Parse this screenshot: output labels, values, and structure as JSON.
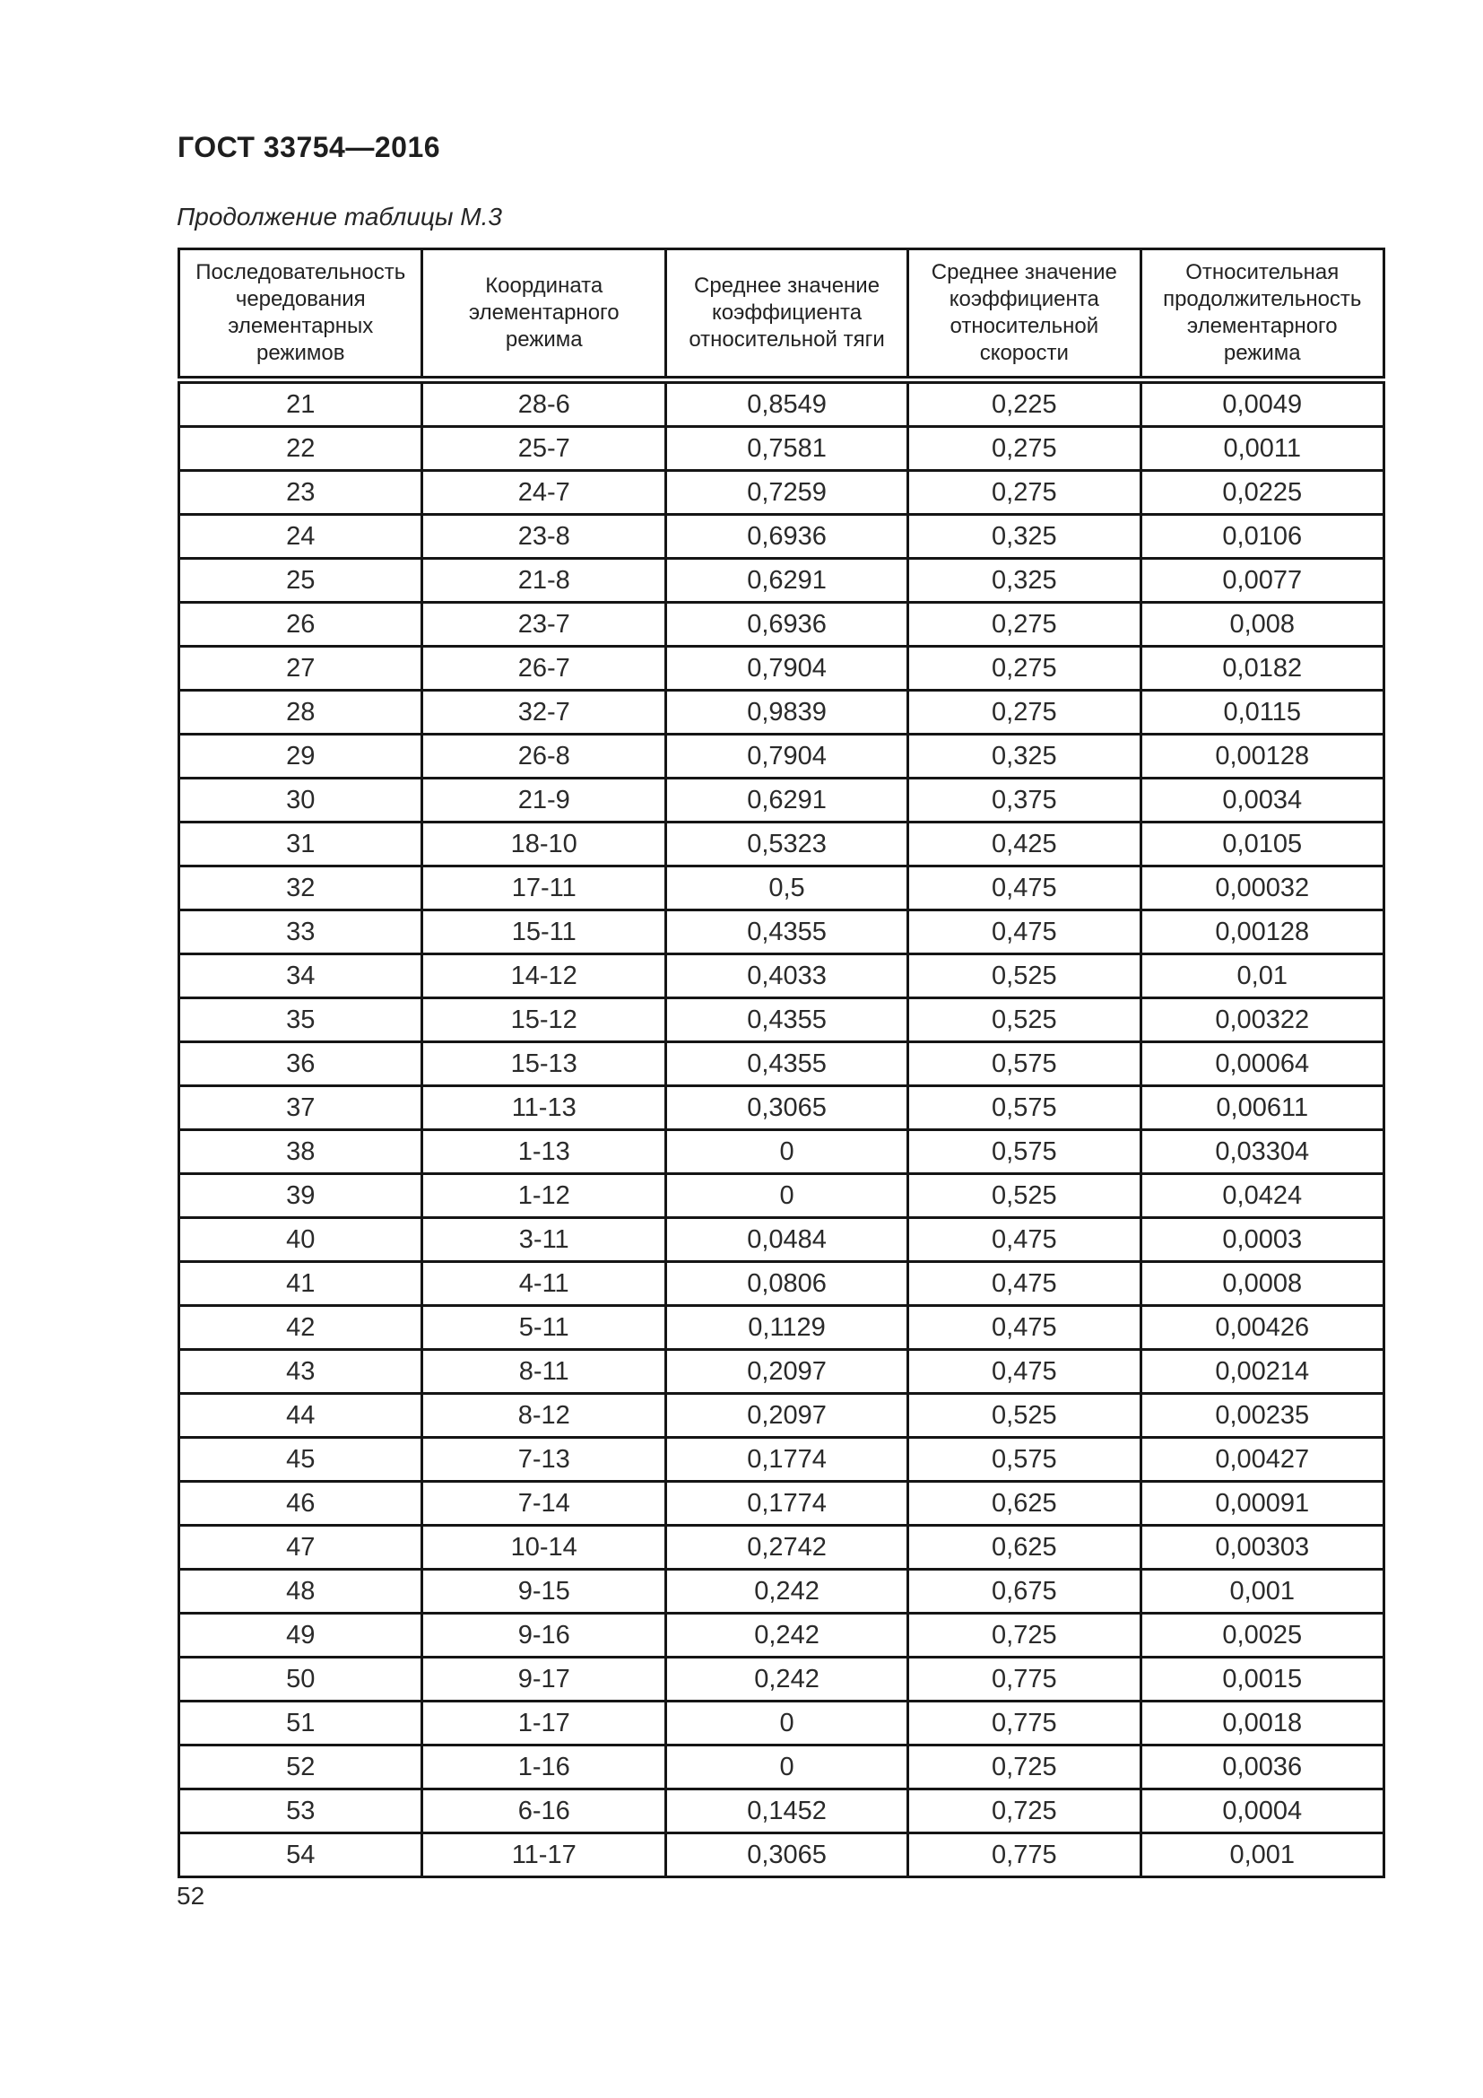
{
  "document": {
    "standard_code": "ГОСТ 33754—2016",
    "table_caption": "Продолжение таблицы М.3",
    "page_number": "52"
  },
  "table": {
    "columns": [
      "Последовательность чередования элементарных режимов",
      "Координата элементарного режима",
      "Среднее значение коэффициента относительной тяги",
      "Среднее значение коэффициента относительной скорости",
      "Относительная продолжительность элементарного режима"
    ],
    "rows": [
      [
        "21",
        "28-6",
        "0,8549",
        "0,225",
        "0,0049"
      ],
      [
        "22",
        "25-7",
        "0,7581",
        "0,275",
        "0,0011"
      ],
      [
        "23",
        "24-7",
        "0,7259",
        "0,275",
        "0,0225"
      ],
      [
        "24",
        "23-8",
        "0,6936",
        "0,325",
        "0,0106"
      ],
      [
        "25",
        "21-8",
        "0,6291",
        "0,325",
        "0,0077"
      ],
      [
        "26",
        "23-7",
        "0,6936",
        "0,275",
        "0,008"
      ],
      [
        "27",
        "26-7",
        "0,7904",
        "0,275",
        "0,0182"
      ],
      [
        "28",
        "32-7",
        "0,9839",
        "0,275",
        "0,0115"
      ],
      [
        "29",
        "26-8",
        "0,7904",
        "0,325",
        "0,00128"
      ],
      [
        "30",
        "21-9",
        "0,6291",
        "0,375",
        "0,0034"
      ],
      [
        "31",
        "18-10",
        "0,5323",
        "0,425",
        "0,0105"
      ],
      [
        "32",
        "17-11",
        "0,5",
        "0,475",
        "0,00032"
      ],
      [
        "33",
        "15-11",
        "0,4355",
        "0,475",
        "0,00128"
      ],
      [
        "34",
        "14-12",
        "0,4033",
        "0,525",
        "0,01"
      ],
      [
        "35",
        "15-12",
        "0,4355",
        "0,525",
        "0,00322"
      ],
      [
        "36",
        "15-13",
        "0,4355",
        "0,575",
        "0,00064"
      ],
      [
        "37",
        "11-13",
        "0,3065",
        "0,575",
        "0,00611"
      ],
      [
        "38",
        "1-13",
        "0",
        "0,575",
        "0,03304"
      ],
      [
        "39",
        "1-12",
        "0",
        "0,525",
        "0,0424"
      ],
      [
        "40",
        "3-11",
        "0,0484",
        "0,475",
        "0,0003"
      ],
      [
        "41",
        "4-11",
        "0,0806",
        "0,475",
        "0,0008"
      ],
      [
        "42",
        "5-11",
        "0,1129",
        "0,475",
        "0,00426"
      ],
      [
        "43",
        "8-11",
        "0,2097",
        "0,475",
        "0,00214"
      ],
      [
        "44",
        "8-12",
        "0,2097",
        "0,525",
        "0,00235"
      ],
      [
        "45",
        "7-13",
        "0,1774",
        "0,575",
        "0,00427"
      ],
      [
        "46",
        "7-14",
        "0,1774",
        "0,625",
        "0,00091"
      ],
      [
        "47",
        "10-14",
        "0,2742",
        "0,625",
        "0,00303"
      ],
      [
        "48",
        "9-15",
        "0,242",
        "0,675",
        "0,001"
      ],
      [
        "49",
        "9-16",
        "0,242",
        "0,725",
        "0,0025"
      ],
      [
        "50",
        "9-17",
        "0,242",
        "0,775",
        "0,0015"
      ],
      [
        "51",
        "1-17",
        "0",
        "0,775",
        "0,0018"
      ],
      [
        "52",
        "1-16",
        "0",
        "0,725",
        "0,0036"
      ],
      [
        "53",
        "6-16",
        "0,1452",
        "0,725",
        "0,0004"
      ],
      [
        "54",
        "11-17",
        "0,3065",
        "0,775",
        "0,001"
      ]
    ]
  }
}
